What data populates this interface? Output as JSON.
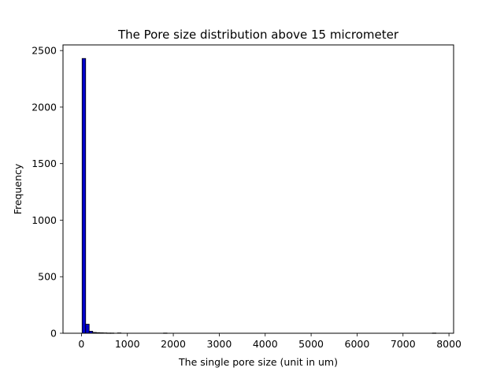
{
  "chart_data": {
    "type": "bar",
    "title": "The Pore size distribution above 15 micrometer",
    "xlabel": "The single pore size (unit in um)",
    "ylabel": "Frequency",
    "xlim": [
      -401,
      8101
    ],
    "ylim": [
      0,
      2550
    ],
    "xticks": [
      0,
      1000,
      2000,
      3000,
      4000,
      5000,
      6000,
      7000,
      8000
    ],
    "xtick_labels": [
      "0",
      "1000",
      "2000",
      "3000",
      "4000",
      "5000",
      "6000",
      "7000",
      "8000"
    ],
    "yticks": [
      0,
      500,
      1000,
      1500,
      2000,
      2500
    ],
    "ytick_labels": [
      "0",
      "500",
      "1000",
      "1500",
      "2000",
      "2500"
    ],
    "bar_color": "#0000cc",
    "edge_color": "#000000",
    "bin_width": 77,
    "bins": [
      {
        "x0": 15,
        "count": 2430
      },
      {
        "x0": 92,
        "count": 80
      },
      {
        "x0": 169,
        "count": 18
      },
      {
        "x0": 246,
        "count": 7
      },
      {
        "x0": 323,
        "count": 5
      },
      {
        "x0": 400,
        "count": 4
      },
      {
        "x0": 477,
        "count": 3
      },
      {
        "x0": 554,
        "count": 2
      },
      {
        "x0": 631,
        "count": 2
      },
      {
        "x0": 785,
        "count": 3
      },
      {
        "x0": 1786,
        "count": 2
      },
      {
        "x0": 7640,
        "count": 2
      }
    ]
  }
}
